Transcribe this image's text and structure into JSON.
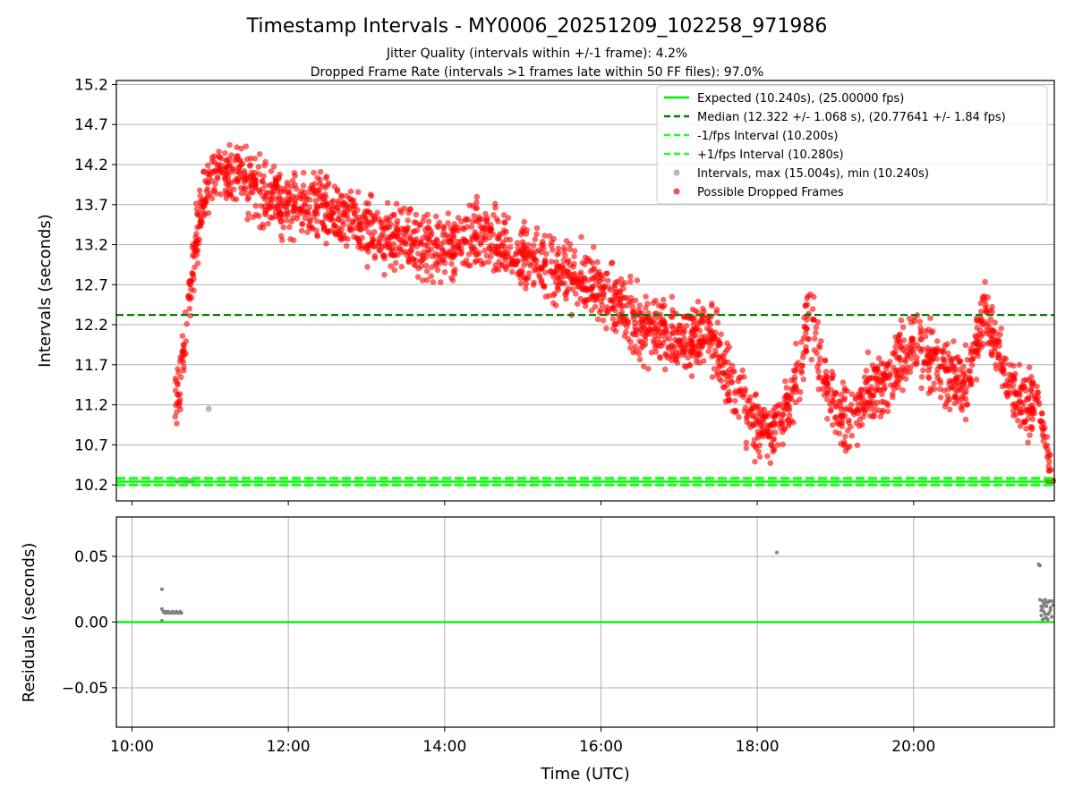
{
  "chart_data": [
    {
      "type": "scatter",
      "title": "Timestamp Intervals - MY0006_20251209_102258_971986",
      "subtitle_1": "Jitter Quality (intervals within +/-1 frame): 4.2%",
      "subtitle_2": "Dropped Frame Rate (intervals >1 frames late within 50 FF files): 97.0%",
      "xlabel": "",
      "ylabel": "Intervals (seconds)",
      "xlim": [
        "09:48",
        "21:48"
      ],
      "ylim": [
        10.0,
        15.25
      ],
      "y_ticks": [
        "10.2",
        "10.7",
        "11.2",
        "11.7",
        "12.2",
        "12.7",
        "13.2",
        "13.7",
        "14.2",
        "14.7",
        "15.2"
      ],
      "grid": "horizontal",
      "legend_position": "upper right",
      "legend": [
        "Expected (10.240s), (25.00000 fps)",
        "Median (12.322 +/- 1.068 s), (20.77641 +/- 1.84 fps)",
        "-1/fps Interval (10.200s)",
        "+1/fps Interval (10.280s)",
        "Intervals, max (15.004s), min (10.240s)",
        "Possible Dropped Frames"
      ],
      "reference_lines": {
        "expected": 10.24,
        "median": 12.322,
        "minus_one_frame": 10.2,
        "plus_one_frame": 10.28
      },
      "series_trend": {
        "name": "Possible Dropped Frames",
        "x": [
          "10:33",
          "10:38",
          "10:42",
          "10:47",
          "10:55",
          "11:05",
          "11:20",
          "11:40",
          "12:00",
          "12:30",
          "13:00",
          "13:30",
          "14:00",
          "14:30",
          "15:00",
          "15:30",
          "15:50",
          "16:10",
          "16:30",
          "16:50",
          "17:10",
          "17:25",
          "17:40",
          "17:55",
          "18:10",
          "18:25",
          "18:40",
          "18:55",
          "19:10",
          "19:25",
          "19:40",
          "20:00",
          "20:20",
          "20:40",
          "20:55",
          "21:10",
          "21:25",
          "21:35",
          "21:40",
          "21:44",
          "21:46"
        ],
        "y": [
          11.2,
          11.6,
          12.3,
          13.0,
          13.8,
          14.1,
          14.05,
          13.85,
          13.7,
          13.65,
          13.4,
          13.2,
          13.15,
          13.3,
          13.05,
          12.85,
          12.75,
          12.45,
          12.2,
          12.1,
          12.0,
          12.1,
          11.4,
          11.05,
          10.85,
          11.15,
          12.3,
          11.3,
          11.0,
          11.4,
          11.5,
          12.05,
          11.65,
          11.45,
          12.4,
          11.6,
          11.1,
          11.3,
          10.9,
          10.5,
          10.25
        ],
        "spread": 0.35,
        "marker_color": "#ff0000"
      },
      "series_grey": {
        "name": "Intervals, max (15.004s), min (10.240s)",
        "x": [
          "10:35",
          "10:40",
          "10:43",
          "10:46",
          "10:59"
        ],
        "y": [
          10.25,
          10.25,
          10.25,
          10.25,
          11.15
        ],
        "marker_color": "#999999"
      },
      "colors": {
        "expected": "#00ee00",
        "median": "#008000",
        "limit_lines": "#22ff22",
        "dropped": "#ff0000",
        "intervals": "#999999"
      }
    },
    {
      "type": "scatter",
      "xlabel": "Time (UTC)",
      "ylabel": "Residuals (seconds)",
      "xlim": [
        "09:48",
        "21:48"
      ],
      "ylim": [
        -0.08,
        0.08
      ],
      "x_ticks": [
        "10:00",
        "12:00",
        "14:00",
        "16:00",
        "18:00",
        "20:00"
      ],
      "y_ticks": [
        "0.05",
        "0.00",
        "−0.05"
      ],
      "grid": "both",
      "zero_line_color": "#00ee00",
      "points": {
        "x": [
          "10:23",
          "10:23",
          "10:23",
          "10:24",
          "10:25",
          "10:26",
          "10:27",
          "10:28",
          "10:29",
          "10:30",
          "10:31",
          "10:32",
          "10:33",
          "10:34",
          "10:35",
          "10:36",
          "10:37",
          "10:38",
          "18:15",
          "21:36",
          "21:37",
          "21:37",
          "21:38",
          "21:38",
          "21:39",
          "21:39",
          "21:40",
          "21:40",
          "21:41",
          "21:41",
          "21:42",
          "21:42",
          "21:43",
          "21:43",
          "21:44",
          "21:45",
          "21:46",
          "21:47",
          "21:38",
          "21:40",
          "21:42",
          "21:44",
          "21:46",
          "21:39",
          "21:41",
          "21:43",
          "21:45"
        ],
        "y": [
          0.025,
          0.001,
          0.01,
          0.008,
          0.007,
          0.008,
          0.007,
          0.008,
          0.007,
          0.007,
          0.008,
          0.007,
          0.007,
          0.008,
          0.007,
          0.007,
          0.008,
          0.007,
          0.053,
          0.044,
          0.043,
          0.017,
          0.012,
          0.005,
          0.016,
          0.002,
          0.013,
          0.008,
          0.017,
          0.003,
          0.012,
          0.015,
          0.006,
          0.002,
          0.016,
          0.011,
          0.004,
          0.013,
          0.009,
          0.014,
          0.003,
          0.007,
          0.016,
          0.011,
          0.006,
          0.015,
          0.009
        ],
        "marker_color": "#808080"
      }
    }
  ]
}
